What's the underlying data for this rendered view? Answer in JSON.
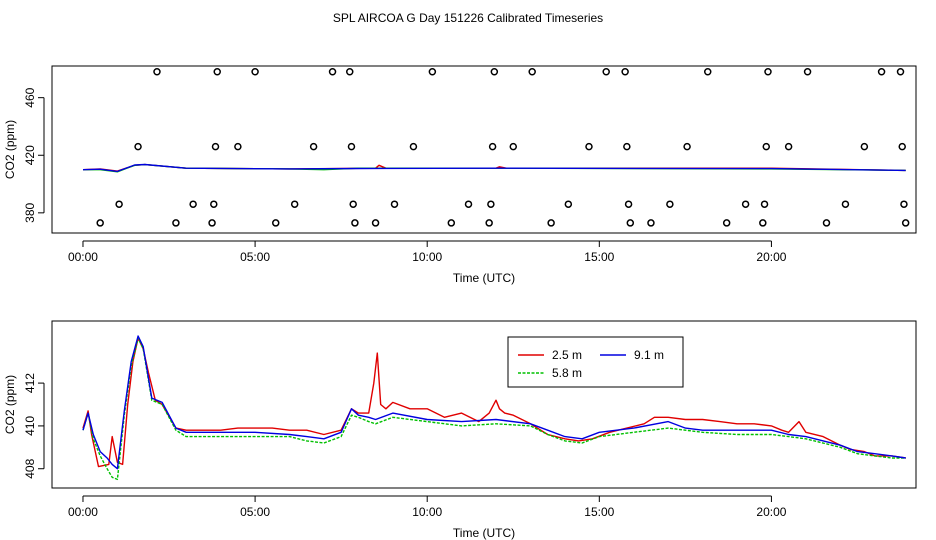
{
  "figure": {
    "title": "SPL AIRCOA G  Day 151226  Calibrated Timeseries"
  },
  "colors": {
    "series_2_5m": "#e00000",
    "series_5_8m": "#00c000",
    "series_9_1m": "#0000e0",
    "axis": "#000000",
    "background": "#ffffff"
  },
  "chart_data": [
    {
      "type": "scatter",
      "title": "",
      "xlabel": "Time (UTC)",
      "ylabel": "CO2 (ppm)",
      "xlim": [
        -0.9,
        24.2
      ],
      "ylim": [
        366,
        482
      ],
      "xticks": [
        0,
        5,
        10,
        15,
        20
      ],
      "xtick_labels": [
        "00:00",
        "05:00",
        "10:00",
        "15:00",
        "20:00"
      ],
      "yticks": [
        380,
        420,
        460
      ],
      "ytick_labels": [
        "380",
        "420",
        "460"
      ],
      "grid": false,
      "calibration_points": [
        {
          "x": 0.5,
          "y": 373
        },
        {
          "x": 1.05,
          "y": 386
        },
        {
          "x": 1.6,
          "y": 426
        },
        {
          "x": 2.15,
          "y": 478
        },
        {
          "x": 2.7,
          "y": 373
        },
        {
          "x": 3.2,
          "y": 386
        },
        {
          "x": 3.75,
          "y": 373
        },
        {
          "x": 3.8,
          "y": 386
        },
        {
          "x": 3.85,
          "y": 426
        },
        {
          "x": 3.9,
          "y": 478
        },
        {
          "x": 4.5,
          "y": 426
        },
        {
          "x": 5.0,
          "y": 478
        },
        {
          "x": 5.6,
          "y": 373
        },
        {
          "x": 6.15,
          "y": 386
        },
        {
          "x": 6.7,
          "y": 426
        },
        {
          "x": 7.25,
          "y": 478
        },
        {
          "x": 7.75,
          "y": 478
        },
        {
          "x": 7.8,
          "y": 426
        },
        {
          "x": 7.85,
          "y": 386
        },
        {
          "x": 7.9,
          "y": 373
        },
        {
          "x": 8.5,
          "y": 373
        },
        {
          "x": 9.05,
          "y": 386
        },
        {
          "x": 9.6,
          "y": 426
        },
        {
          "x": 10.15,
          "y": 478
        },
        {
          "x": 10.7,
          "y": 373
        },
        {
          "x": 11.2,
          "y": 386
        },
        {
          "x": 11.8,
          "y": 373
        },
        {
          "x": 11.85,
          "y": 386
        },
        {
          "x": 11.9,
          "y": 426
        },
        {
          "x": 11.95,
          "y": 478
        },
        {
          "x": 12.5,
          "y": 426
        },
        {
          "x": 13.05,
          "y": 478
        },
        {
          "x": 13.6,
          "y": 373
        },
        {
          "x": 14.1,
          "y": 386
        },
        {
          "x": 14.7,
          "y": 426
        },
        {
          "x": 15.2,
          "y": 478
        },
        {
          "x": 15.75,
          "y": 478
        },
        {
          "x": 15.8,
          "y": 426
        },
        {
          "x": 15.85,
          "y": 386
        },
        {
          "x": 15.9,
          "y": 373
        },
        {
          "x": 16.5,
          "y": 373
        },
        {
          "x": 17.05,
          "y": 386
        },
        {
          "x": 17.55,
          "y": 426
        },
        {
          "x": 18.15,
          "y": 478
        },
        {
          "x": 18.7,
          "y": 373
        },
        {
          "x": 19.25,
          "y": 386
        },
        {
          "x": 19.75,
          "y": 373
        },
        {
          "x": 19.8,
          "y": 386
        },
        {
          "x": 19.85,
          "y": 426
        },
        {
          "x": 19.9,
          "y": 478
        },
        {
          "x": 20.5,
          "y": 426
        },
        {
          "x": 21.05,
          "y": 478
        },
        {
          "x": 21.6,
          "y": 373
        },
        {
          "x": 22.15,
          "y": 386
        },
        {
          "x": 22.7,
          "y": 426
        },
        {
          "x": 23.2,
          "y": 478
        },
        {
          "x": 23.75,
          "y": 478
        },
        {
          "x": 23.8,
          "y": 426
        },
        {
          "x": 23.85,
          "y": 386
        },
        {
          "x": 23.9,
          "y": 373
        }
      ],
      "series": [
        {
          "name": "2.5 m",
          "color": "#e00000",
          "x": [
            0,
            0.5,
            1.0,
            1.5,
            1.8,
            3,
            6,
            8.5,
            8.6,
            8.8,
            12,
            12.1,
            12.3,
            20,
            23.9
          ],
          "y": [
            410,
            410.5,
            409,
            413,
            413.5,
            411,
            410.5,
            411,
            413,
            411,
            411,
            412,
            411,
            411,
            409.5
          ]
        },
        {
          "name": "5.8 m",
          "color": "#00c000",
          "x": [
            0,
            0.5,
            1.0,
            1.5,
            1.8,
            3,
            6,
            7,
            8,
            12,
            20,
            23.9
          ],
          "y": [
            410,
            410,
            408.5,
            413,
            413.5,
            411,
            410.5,
            410,
            411,
            411,
            410.5,
            409.5
          ]
        },
        {
          "name": "9.1 m",
          "color": "#0000e0",
          "x": [
            0,
            0.5,
            1.0,
            1.5,
            1.8,
            3,
            6,
            8,
            12,
            20,
            23.9
          ],
          "y": [
            410,
            410.3,
            408.8,
            413.2,
            413.6,
            411,
            410.5,
            410.8,
            411,
            410.7,
            409.5
          ]
        }
      ]
    },
    {
      "type": "line",
      "title": "",
      "xlabel": "Time (UTC)",
      "ylabel": "CO2 (ppm)",
      "xlim": [
        -0.9,
        24.2
      ],
      "ylim": [
        407.1,
        414.9
      ],
      "xticks": [
        0,
        5,
        10,
        15,
        20
      ],
      "xtick_labels": [
        "00:00",
        "05:00",
        "10:00",
        "15:00",
        "20:00"
      ],
      "yticks": [
        408,
        410,
        412
      ],
      "ytick_labels": [
        "408",
        "410",
        "412"
      ],
      "grid": false,
      "legend": {
        "placement": "top-center",
        "columns": 2
      },
      "series": [
        {
          "name": "2.5 m",
          "color": "#e00000",
          "x": [
            0,
            0.15,
            0.25,
            0.45,
            0.75,
            0.85,
            1.0,
            1.15,
            1.3,
            1.45,
            1.6,
            1.75,
            1.9,
            2.1,
            2.3,
            2.7,
            3.0,
            4.0,
            4.5,
            5.0,
            5.5,
            6.0,
            6.5,
            7.0,
            7.5,
            7.8,
            8.0,
            8.3,
            8.45,
            8.55,
            8.65,
            8.8,
            9.0,
            9.5,
            10.0,
            10.5,
            11.0,
            11.5,
            11.8,
            12.0,
            12.1,
            12.25,
            12.5,
            13.0,
            13.5,
            14.0,
            14.4,
            14.8,
            15.3,
            15.8,
            16.3,
            16.6,
            17.0,
            17.5,
            18.0,
            18.5,
            19.0,
            19.5,
            20.0,
            20.3,
            20.5,
            20.8,
            21.0,
            21.5,
            22.0,
            22.3,
            22.7,
            23.0,
            23.5,
            23.9
          ],
          "y": [
            409.9,
            410.7,
            409.6,
            408.1,
            408.2,
            409.5,
            408.3,
            408.2,
            411.0,
            413.0,
            414.1,
            413.6,
            412.5,
            411.2,
            411.0,
            409.9,
            409.8,
            409.8,
            409.9,
            409.9,
            409.9,
            409.8,
            409.8,
            409.6,
            409.8,
            410.8,
            410.6,
            410.6,
            412.0,
            413.4,
            411.0,
            410.8,
            411.1,
            410.8,
            410.8,
            410.4,
            410.6,
            410.2,
            410.6,
            411.2,
            410.8,
            410.6,
            410.5,
            410.1,
            409.6,
            409.4,
            409.3,
            409.4,
            409.7,
            409.9,
            410.1,
            410.4,
            410.4,
            410.3,
            410.3,
            410.2,
            410.1,
            410.1,
            410.0,
            409.8,
            409.7,
            410.2,
            409.7,
            409.5,
            409.1,
            408.9,
            408.8,
            408.6,
            408.6,
            408.5
          ]
        },
        {
          "name": "5.8 m",
          "color": "#00c000",
          "x": [
            0,
            0.15,
            0.3,
            0.5,
            0.7,
            0.85,
            1.0,
            1.2,
            1.4,
            1.6,
            1.75,
            2.0,
            2.3,
            2.7,
            3.0,
            4.0,
            5.0,
            6.0,
            6.5,
            7.0,
            7.5,
            7.8,
            8.0,
            8.3,
            8.5,
            9.0,
            10.0,
            11.0,
            12.0,
            13.0,
            13.5,
            14.0,
            14.5,
            15.0,
            16.0,
            17.0,
            17.5,
            18.0,
            19.0,
            20.0,
            20.5,
            21.0,
            22.0,
            22.5,
            23.0,
            23.5,
            23.9
          ],
          "y": [
            409.8,
            410.6,
            409.4,
            408.6,
            408.0,
            407.6,
            407.5,
            410.5,
            412.8,
            414.1,
            413.6,
            411.2,
            411.0,
            409.8,
            409.5,
            409.5,
            409.5,
            409.5,
            409.3,
            409.2,
            409.5,
            410.5,
            410.4,
            410.2,
            410.1,
            410.4,
            410.2,
            410.0,
            410.1,
            410.0,
            409.6,
            409.3,
            409.2,
            409.5,
            409.7,
            409.9,
            409.8,
            409.7,
            409.6,
            409.6,
            409.5,
            409.4,
            409.0,
            408.7,
            408.6,
            408.5,
            408.5
          ]
        },
        {
          "name": "9.1 m",
          "color": "#0000e0",
          "x": [
            0,
            0.15,
            0.3,
            0.5,
            0.7,
            0.85,
            1.0,
            1.2,
            1.4,
            1.6,
            1.75,
            2.0,
            2.3,
            2.7,
            3.0,
            4.0,
            5.0,
            6.0,
            6.5,
            7.0,
            7.5,
            7.8,
            8.0,
            8.3,
            8.5,
            9.0,
            10.0,
            11.0,
            12.0,
            13.0,
            13.5,
            14.0,
            14.5,
            15.0,
            16.0,
            17.0,
            17.5,
            18.0,
            19.0,
            20.0,
            20.5,
            21.0,
            22.0,
            22.5,
            23.0,
            23.5,
            23.9
          ],
          "y": [
            409.8,
            410.6,
            409.6,
            408.8,
            408.5,
            408.2,
            408.0,
            410.7,
            413.0,
            414.2,
            413.7,
            411.3,
            411.1,
            409.9,
            409.7,
            409.7,
            409.7,
            409.6,
            409.5,
            409.4,
            409.7,
            410.8,
            410.5,
            410.4,
            410.3,
            410.6,
            410.3,
            410.2,
            410.3,
            410.1,
            409.8,
            409.5,
            409.4,
            409.7,
            409.9,
            410.2,
            409.9,
            409.8,
            409.8,
            409.8,
            409.6,
            409.5,
            409.1,
            408.8,
            408.7,
            408.6,
            408.5
          ]
        }
      ]
    }
  ]
}
